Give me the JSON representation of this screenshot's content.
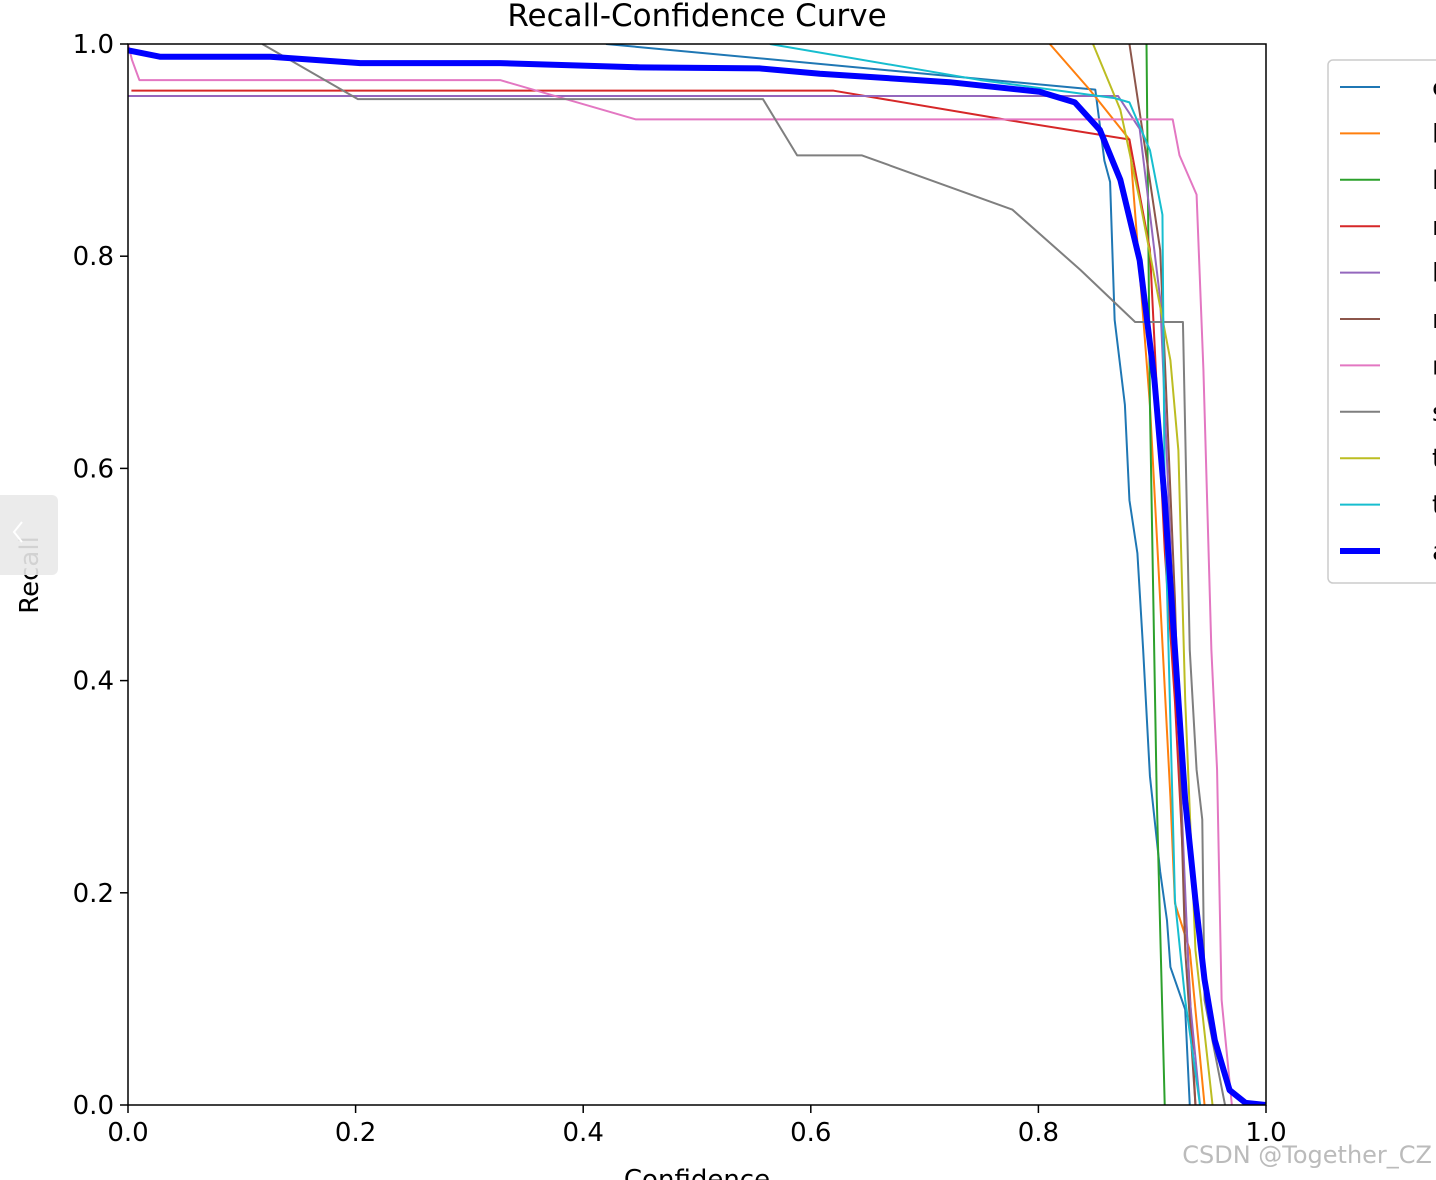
{
  "chart_data": {
    "type": "line",
    "title": "Recall-Confidence Curve",
    "xlabel": "Confidence",
    "ylabel": "Recall",
    "xlim": [
      0,
      1
    ],
    "ylim": [
      0,
      1
    ],
    "xticks": [
      {
        "value": 0,
        "label": "0.0"
      },
      0.2,
      0.4,
      0.6,
      0.8,
      {
        "value": 1,
        "label": "1.0"
      }
    ],
    "yticks": [
      {
        "value": 0,
        "label": "0.0"
      },
      0.2,
      0.4,
      0.6,
      0.8,
      {
        "value": 1,
        "label": "1.0"
      }
    ],
    "legend": "outside-right",
    "series": [
      {
        "name": "c",
        "color": "#1f77b4",
        "x": [
          0.42,
          0.85,
          0.858,
          0.863,
          0.867,
          0.876,
          0.88,
          0.887,
          0.892,
          0.898,
          0.907,
          0.913,
          0.916,
          0.929,
          0.933
        ],
        "values": [
          1.0,
          0.957,
          0.89,
          0.87,
          0.74,
          0.66,
          0.57,
          0.52,
          0.43,
          0.31,
          0.22,
          0.174,
          0.13,
          0.09,
          0
        ]
      },
      {
        "name": "l",
        "color": "#ff7f0e",
        "x": [
          0.81,
          0.845,
          0.88,
          0.898,
          0.907,
          0.916,
          0.92,
          0.933,
          0.946
        ],
        "values": [
          1.0,
          0.957,
          0.91,
          0.66,
          0.476,
          0.29,
          0.19,
          0.146,
          0
        ]
      },
      {
        "name": "l",
        "color": "#2ca02c",
        "x": [
          0.895,
          0.898,
          0.904,
          0.911
        ],
        "values": [
          1.0,
          0.66,
          0.29,
          0
        ]
      },
      {
        "name": "r",
        "color": "#d62728",
        "x": [
          0.003,
          0.62,
          0.775,
          0.88,
          0.898,
          0.911,
          0.92,
          0.929,
          0.938
        ],
        "values": [
          0.956,
          0.956,
          0.928,
          0.91,
          0.806,
          0.523,
          0.38,
          0.193,
          0
        ]
      },
      {
        "name": "l",
        "color": "#9467bd",
        "x": [
          0,
          0.87,
          0.889,
          0.907,
          0.92,
          0.933,
          0.942
        ],
        "values": [
          0.951,
          0.951,
          0.92,
          0.76,
          0.43,
          0.1,
          0
        ]
      },
      {
        "name": "r",
        "color": "#8c564b",
        "x": [
          0.88,
          0.894,
          0.907,
          0.92,
          0.929,
          0.938
        ],
        "values": [
          1.0,
          0.9,
          0.806,
          0.476,
          0.146,
          0
        ]
      },
      {
        "name": "r",
        "color": "#e377c2",
        "x": [
          0,
          0.0035,
          0.01,
          0.327,
          0.446,
          0.918,
          0.924,
          0.939,
          0.945,
          0.952,
          0.957,
          0.961,
          0.97
        ],
        "values": [
          1.0,
          0.985,
          0.966,
          0.966,
          0.929,
          0.929,
          0.895,
          0.858,
          0.693,
          0.429,
          0.316,
          0.099,
          0
        ]
      },
      {
        "name": "s",
        "color": "#7f7f7f",
        "x": [
          0.118,
          0.202,
          0.558,
          0.588,
          0.645,
          0.777,
          0.837,
          0.885,
          0.927,
          0.933,
          0.939,
          0.944,
          0.946,
          0.964
        ],
        "values": [
          1.0,
          0.948,
          0.948,
          0.895,
          0.895,
          0.844,
          0.787,
          0.738,
          0.738,
          0.429,
          0.316,
          0.269,
          0.099,
          0
        ]
      },
      {
        "name": "t",
        "color": "#bcbd22",
        "x": [
          0.848,
          0.872,
          0.889,
          0.916,
          0.923,
          0.929,
          0.938,
          0.953
        ],
        "values": [
          1.0,
          0.938,
          0.853,
          0.702,
          0.617,
          0.382,
          0.146,
          0
        ]
      },
      {
        "name": "t",
        "color": "#17becf",
        "x": [
          0.564,
          0.749,
          0.867,
          0.88,
          0.898,
          0.909,
          0.911,
          0.92,
          0.929,
          0.942
        ],
        "values": [
          1.0,
          0.966,
          0.949,
          0.945,
          0.9,
          0.839,
          0.57,
          0.193,
          0.099,
          0
        ]
      },
      {
        "name": "a",
        "color": "#0000ff",
        "width": 6,
        "x": [
          0,
          0.028,
          0.125,
          0.204,
          0.327,
          0.45,
          0.555,
          0.608,
          0.722,
          0.801,
          0.832,
          0.854,
          0.872,
          0.889,
          0.902,
          0.911,
          0.92,
          0.929,
          0.938,
          0.946,
          0.955,
          0.968,
          0.982,
          1.0
        ],
        "values": [
          0.994,
          0.988,
          0.988,
          0.982,
          0.982,
          0.978,
          0.977,
          0.972,
          0.964,
          0.955,
          0.945,
          0.919,
          0.872,
          0.796,
          0.683,
          0.57,
          0.429,
          0.287,
          0.193,
          0.118,
          0.061,
          0.014,
          0.002,
          0
        ]
      }
    ]
  },
  "watermark": "CSDN @Together_CZ"
}
